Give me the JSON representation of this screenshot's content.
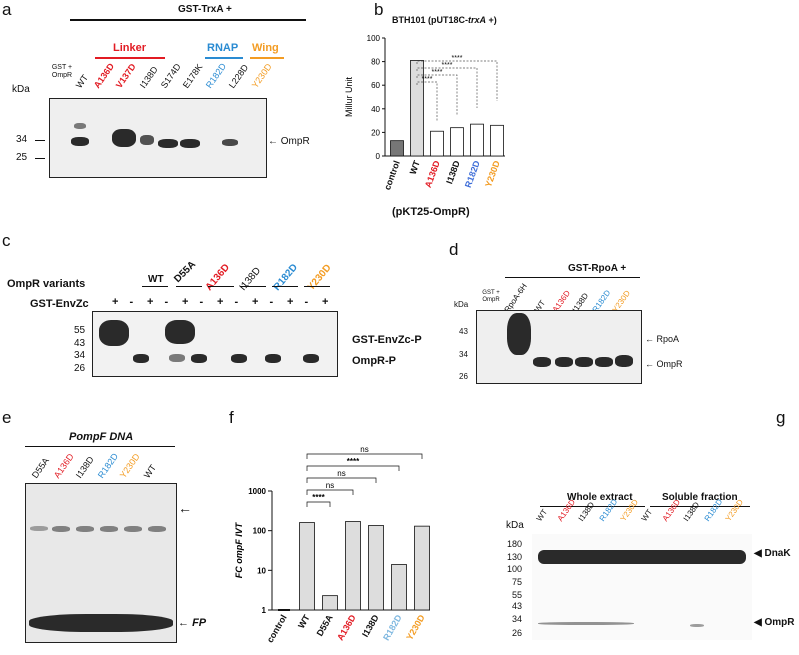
{
  "colors": {
    "red": "#e21b23",
    "blue": "#2a8bd2",
    "orange": "#f39c23",
    "royal": "#3f6ed8"
  },
  "panel_a": {
    "label": "a",
    "header": "GST-TrxA +",
    "groups": [
      {
        "name": "Linker",
        "color": "#e21b23"
      },
      {
        "name": "RNAP",
        "color": "#2a8bd2"
      },
      {
        "name": "Wing",
        "color": "#f39c23"
      }
    ],
    "lanes": [
      "GST + OmpR",
      "WT",
      "A136D",
      "V137D",
      "I138D",
      "S174D",
      "E178K",
      "R182D",
      "L228D",
      "Y230D"
    ],
    "kda_label": "kDa",
    "markers": [
      "34",
      "25"
    ],
    "band_label": "OmpR"
  },
  "panel_b": {
    "label": "b",
    "title": "BTH101 (pUT18C-",
    "title_italic": "trxA",
    "title_end": " +)",
    "xlabel": "(pKT25-OmpR)",
    "sig": [
      "****",
      "****",
      "****",
      "****"
    ],
    "chart_data": {
      "type": "bar",
      "ylabel": "Millur Unit",
      "ylim": [
        0,
        100
      ],
      "yticks": [
        "0",
        "20",
        "40",
        "60",
        "80",
        "100"
      ],
      "categories": [
        "control",
        "WT",
        "A136D",
        "I138D",
        "R182D",
        "Y230D"
      ],
      "values": [
        13,
        81,
        21,
        24,
        27,
        26
      ]
    }
  },
  "panel_c": {
    "label": "c",
    "row1": "OmpR variants",
    "row2": "GST-EnvZc",
    "variants": [
      "WT",
      "D55A",
      "A136D",
      "I138D",
      "R182D",
      "Y230D"
    ],
    "signs": [
      "+",
      "-",
      "+",
      "-",
      "+",
      "-",
      "+",
      "-",
      "+",
      "-",
      "+",
      "-",
      "+"
    ],
    "markers": [
      "55",
      "43",
      "34",
      "26"
    ],
    "band1": "GST-EnvZc-P",
    "band2": "OmpR-P"
  },
  "panel_d": {
    "label": "d",
    "header": "GST-RpoA +",
    "lanes": [
      "GST + OmpR",
      "RpoA-6H",
      "WT",
      "A136D",
      "I138D",
      "R182D",
      "Y230D"
    ],
    "kda_label": "kDa",
    "markers": [
      "43",
      "34",
      "26"
    ],
    "band1": "RpoA",
    "band2": "OmpR"
  },
  "panel_e": {
    "label": "e",
    "title": "PompF DNA",
    "lanes": [
      "D55A",
      "A136D",
      "I138D",
      "R182D",
      "Y230D",
      "WT"
    ],
    "fp": "FP"
  },
  "panel_f": {
    "label": "f",
    "ns": [
      "ns",
      "ns",
      "ns"
    ],
    "sig": [
      "****",
      "****"
    ],
    "chart_data": {
      "type": "bar",
      "ylabel": "FC ompF IVT",
      "scale": "log",
      "ylim": [
        1,
        1000
      ],
      "yticks": [
        "1",
        "10",
        "100",
        "1000"
      ],
      "categories": [
        "control",
        "WT",
        "D55A",
        "A136D",
        "I138D",
        "R182D",
        "Y230D"
      ],
      "values": [
        1,
        160,
        2.3,
        170,
        135,
        14,
        130
      ]
    }
  },
  "panel_g": {
    "label": "g",
    "section1": "Whole extract",
    "section2": "Soluble fraction",
    "lanes": [
      "WT",
      "A136D",
      "I138D",
      "R182D",
      "Y230D",
      "WT",
      "A136D",
      "I138D",
      "R182D",
      "Y230D"
    ],
    "kda_label": "kDa",
    "markers": [
      "180",
      "130",
      "100",
      "75",
      "55",
      "43",
      "34",
      "26"
    ],
    "band1": "DnaK",
    "band2": "OmpR"
  }
}
